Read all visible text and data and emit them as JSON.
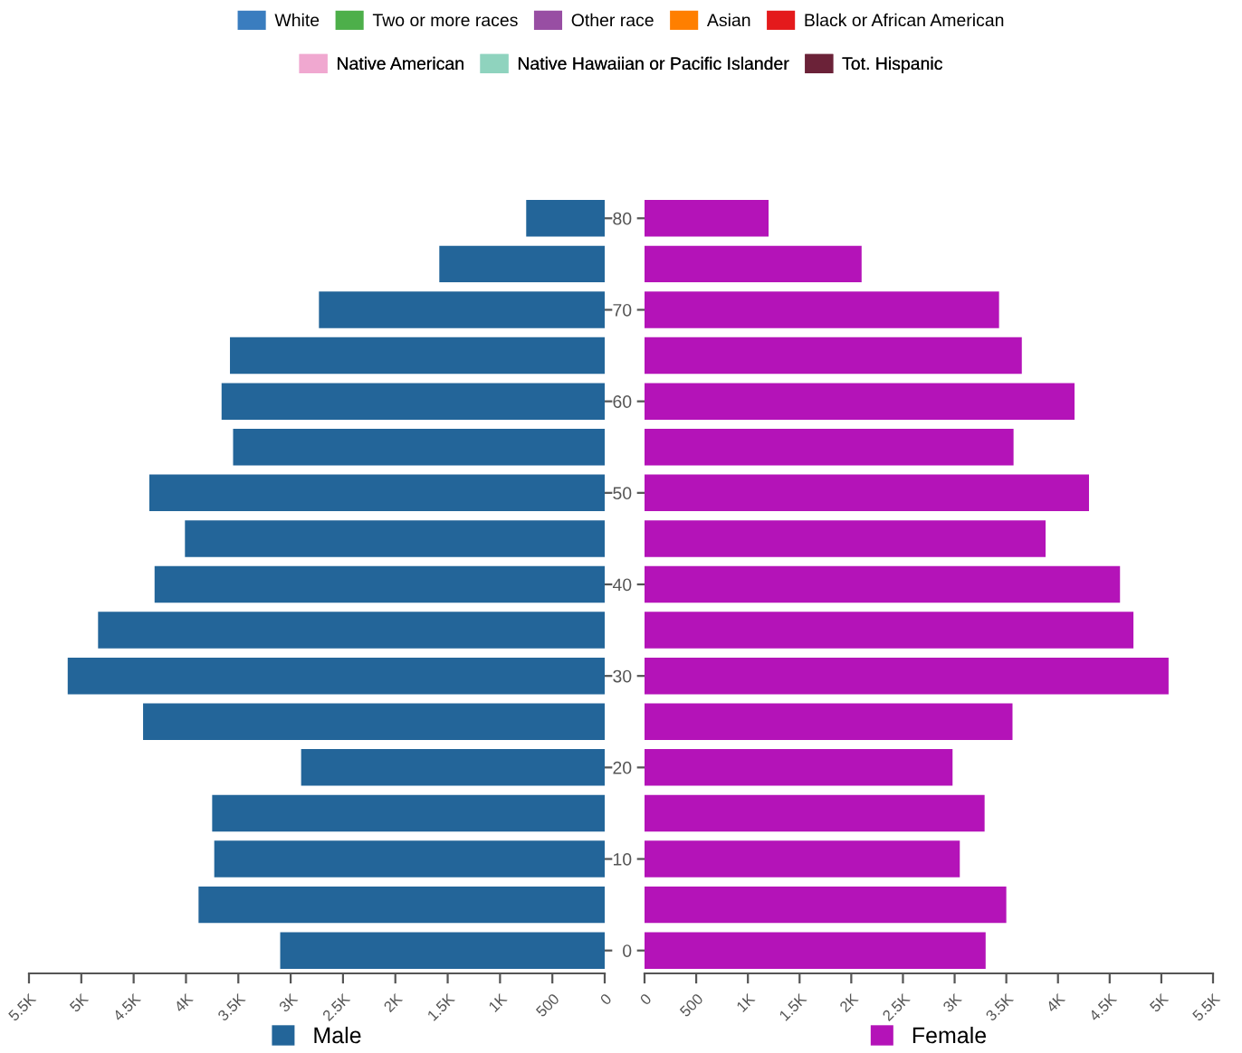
{
  "chart_data": [
    {
      "type": "other",
      "legend": "top",
      "series": [
        {
          "name": "White",
          "color": "#3a7dbf"
        },
        {
          "name": "Two or more races",
          "color": "#4daf4a"
        },
        {
          "name": "Other race",
          "color": "#984ea3"
        },
        {
          "name": "Asian",
          "color": "#ff7f00"
        },
        {
          "name": "Black or African American",
          "color": "#e41a1c"
        },
        {
          "name": "Native American",
          "color": "#f0a8d0"
        },
        {
          "name": "Native Hawaiian or Pacific Islander",
          "color": "#8fd3be"
        },
        {
          "name": "Tot. Hispanic",
          "color": "#6b2238"
        }
      ]
    },
    {
      "type": "bar",
      "orientation": "horizontal",
      "categories": [
        "80",
        null,
        "70",
        null,
        "60",
        null,
        "50",
        null,
        "40",
        null,
        "30",
        null,
        "20",
        null,
        "10",
        null,
        "0"
      ],
      "series": [
        {
          "name": "Male",
          "color": "#236599",
          "values": [
            750,
            1580,
            2730,
            3580,
            3660,
            3550,
            4350,
            4010,
            4300,
            4840,
            5130,
            4410,
            2900,
            3750,
            3730,
            3880,
            3100
          ]
        }
      ],
      "xlim": [
        5500,
        0
      ],
      "xticks": [
        {
          "value": 5500,
          "label": "5.5K"
        },
        {
          "value": 5000,
          "label": "5K"
        },
        {
          "value": 4500,
          "label": "4.5K"
        },
        {
          "value": 4000,
          "label": "4K"
        },
        {
          "value": 3500,
          "label": "3.5K"
        },
        {
          "value": 3000,
          "label": "3K"
        },
        {
          "value": 2500,
          "label": "2.5K"
        },
        {
          "value": 2000,
          "label": "2K"
        },
        {
          "value": 1500,
          "label": "1.5K"
        },
        {
          "value": 1000,
          "label": "1K"
        },
        500,
        0
      ],
      "tick_labels": "x",
      "legend": "bottom"
    },
    {
      "type": "bar",
      "orientation": "horizontal",
      "categories": [
        "80",
        null,
        "70",
        null,
        "60",
        null,
        "50",
        null,
        "40",
        null,
        "30",
        null,
        "20",
        null,
        "10",
        null,
        "0"
      ],
      "series": [
        {
          "name": "Female",
          "color": "#b413b8",
          "values": [
            1200,
            2100,
            3430,
            3650,
            4160,
            3570,
            4300,
            3880,
            4600,
            4730,
            5070,
            3560,
            2980,
            3290,
            3050,
            3500,
            3300
          ]
        }
      ],
      "xlim": [
        0,
        5500
      ],
      "xticks": [
        0,
        500,
        {
          "value": 1000,
          "label": "1K"
        },
        {
          "value": 1500,
          "label": "1.5K"
        },
        {
          "value": 2000,
          "label": "2K"
        },
        {
          "value": 2500,
          "label": "2.5K"
        },
        {
          "value": 3000,
          "label": "3K"
        },
        {
          "value": 3500,
          "label": "3.5K"
        },
        {
          "value": 4000,
          "label": "4K"
        },
        {
          "value": 4500,
          "label": "4.5K"
        },
        {
          "value": 5000,
          "label": "5K"
        },
        {
          "value": 5500,
          "label": "5.5K"
        }
      ],
      "legend": "bottom"
    }
  ]
}
